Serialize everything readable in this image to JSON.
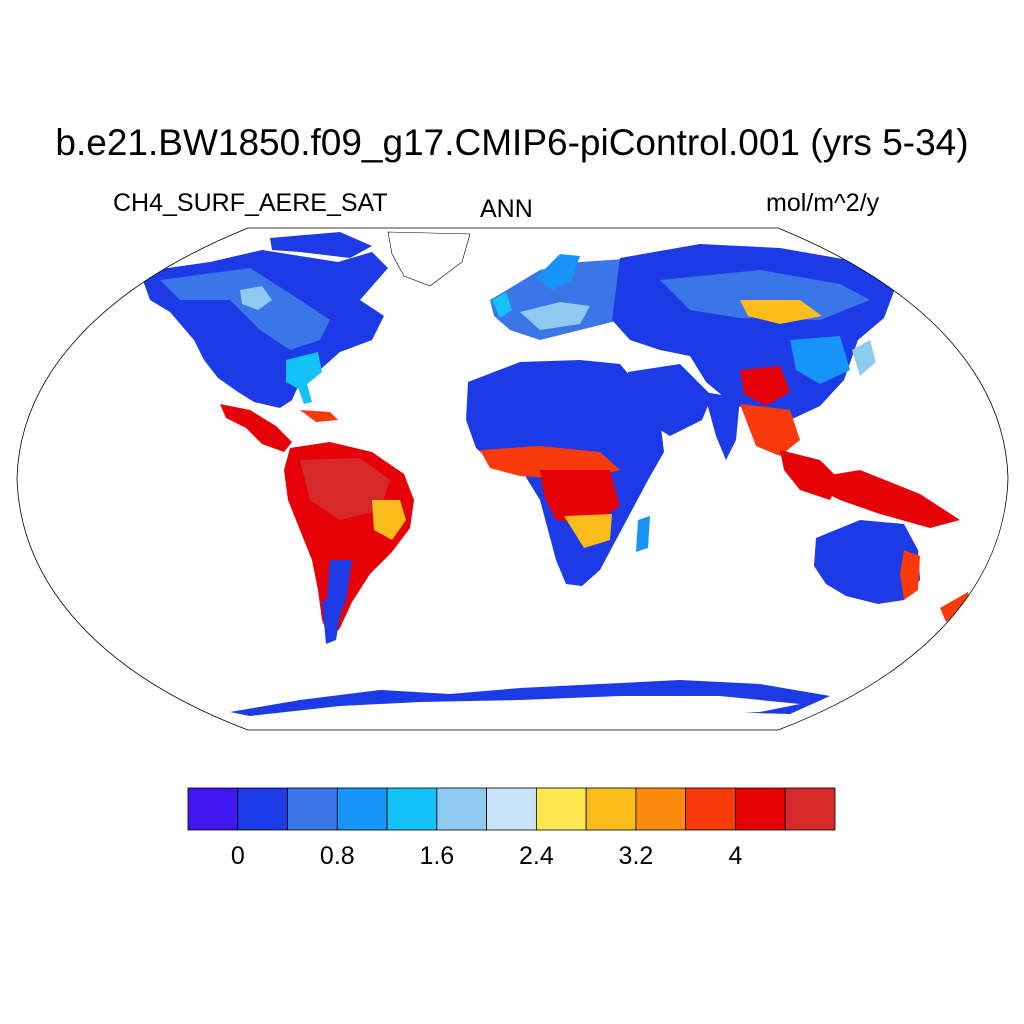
{
  "figure": {
    "title": "b.e21.BW1850.f09_g17.CMIP6-piControl.001 (yrs 5-34)",
    "left_label": "CH4_SURF_AERE_SAT",
    "center_label": "ANN",
    "right_label": "mol/m^2/y"
  },
  "colorbar": {
    "colors": [
      "#4216f0",
      "#1c3ae6",
      "#3a76e8",
      "#1694f7",
      "#14c1f8",
      "#8fcaf0",
      "#c8e5f7",
      "#fde84f",
      "#fbbd1c",
      "#fb8a0c",
      "#f93a0a",
      "#e60007",
      "#d62a2a"
    ],
    "tick_labels": [
      "0",
      "0.8",
      "1.6",
      "2.4",
      "3.2",
      "4"
    ]
  },
  "map": {
    "projection": "Robinson",
    "ocean_color": "#ffffff",
    "land_base_color": "#1c3ae6"
  }
}
